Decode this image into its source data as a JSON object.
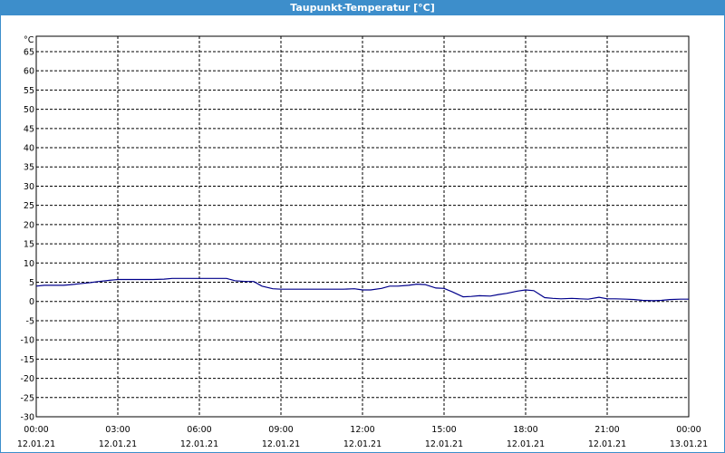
{
  "window": {
    "title": "Taupunkt-Temperatur [°C]"
  },
  "chart_data": {
    "type": "line",
    "title": "Taupunkt-Temperatur [°C]",
    "ylabel": "°C",
    "xlabel": "",
    "ylim": [
      -30,
      69
    ],
    "yticks": [
      65,
      60,
      55,
      50,
      45,
      40,
      35,
      30,
      25,
      20,
      15,
      10,
      5,
      0,
      -5,
      -10,
      -15,
      -20,
      -25,
      -30
    ],
    "xticks": [
      {
        "time": "00:00",
        "date": "12.01.21"
      },
      {
        "time": "03:00",
        "date": "12.01.21"
      },
      {
        "time": "06:00",
        "date": "12.01.21"
      },
      {
        "time": "09:00",
        "date": "12.01.21"
      },
      {
        "time": "12:00",
        "date": "12.01.21"
      },
      {
        "time": "15:00",
        "date": "12.01.21"
      },
      {
        "time": "18:00",
        "date": "12.01.21"
      },
      {
        "time": "21:00",
        "date": "12.01.21"
      },
      {
        "time": "00:00",
        "date": "13.01.21"
      }
    ],
    "grid": true,
    "line_color": "#00008b",
    "series": [
      {
        "x": [
          0.0,
          0.3,
          0.8,
          1.0,
          1.3,
          1.7,
          2.0,
          2.3,
          2.7,
          3.0,
          3.3,
          3.7,
          4.0,
          4.3,
          4.7,
          5.0,
          5.3,
          5.7,
          6.0,
          6.3,
          6.7,
          7.0,
          7.3,
          7.7,
          8.0,
          8.3,
          8.7,
          9.0,
          9.3,
          9.7,
          10.0,
          10.3,
          10.7,
          11.0,
          11.3,
          11.7,
          12.0,
          12.3,
          12.7,
          13.0,
          13.3,
          13.7,
          14.0,
          14.3,
          14.7,
          15.0,
          15.3,
          15.7,
          16.0,
          16.3,
          16.7,
          17.0,
          17.3,
          17.7,
          18.0,
          18.3,
          18.7,
          19.0,
          19.3,
          19.7,
          20.0,
          20.3,
          20.7,
          21.0,
          21.3,
          21.7,
          22.0,
          22.3,
          22.7,
          23.0,
          23.3,
          23.7,
          24.0
        ],
        "y": [
          4.0,
          4.2,
          4.2,
          4.2,
          4.4,
          4.7,
          4.9,
          5.2,
          5.5,
          5.7,
          5.7,
          5.7,
          5.7,
          5.7,
          5.8,
          6.0,
          6.0,
          6.0,
          6.0,
          6.0,
          6.0,
          6.0,
          5.4,
          5.2,
          5.2,
          4.0,
          3.3,
          3.2,
          3.2,
          3.2,
          3.2,
          3.2,
          3.2,
          3.2,
          3.2,
          3.3,
          3.0,
          3.0,
          3.4,
          4.0,
          4.0,
          4.2,
          4.5,
          4.4,
          3.5,
          3.4,
          2.5,
          1.2,
          1.3,
          1.5,
          1.4,
          1.8,
          2.1,
          2.7,
          3.0,
          2.8,
          1.0,
          0.8,
          0.7,
          0.8,
          0.7,
          0.6,
          1.1,
          0.7,
          0.7,
          0.6,
          0.5,
          0.3,
          0.2,
          0.3,
          0.5,
          0.6,
          0.6
        ]
      }
    ]
  }
}
